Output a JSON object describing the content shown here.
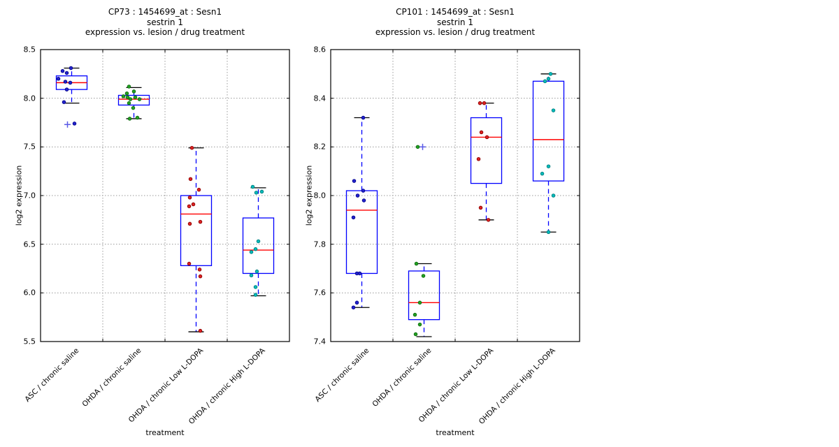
{
  "style": {
    "box_color": "#0000ff",
    "median_color": "#ff0000",
    "whisker_color": "#0000ff",
    "cap_color": "#000000",
    "frame_color": "#000000",
    "grid_color": "#999999",
    "flier_color": "#5959e6"
  },
  "chart_data": [
    {
      "type": "boxplot",
      "title_lines": [
        "CP73 : 1454699_at : Sesn1",
        "sestrin 1",
        "expression vs. lesion / drug treatment"
      ],
      "ylabel": "log2 expression",
      "xlabel": "treatment",
      "ylim": [
        5.5,
        8.5
      ],
      "yticks": [
        5.5,
        6.0,
        6.5,
        7.0,
        7.5,
        8.0,
        8.5
      ],
      "ytick_labels": [
        "5.5",
        "6.0",
        "6.5",
        "7.0",
        "7.5",
        "8.0",
        "8.5"
      ],
      "grid": true,
      "categories": [
        "ASC / chronic saline",
        "OHDA / chronic saline",
        "OHDA / chronic Low L-DOPA",
        "OHDA / chronic High L-DOPA"
      ],
      "groups": [
        {
          "category": "ASC / chronic saline",
          "color": "#2323cc",
          "edge": "#00008b",
          "box": {
            "lo": 7.95,
            "q1": 8.09,
            "med": 8.16,
            "q3": 8.23,
            "hi": 8.31
          },
          "points": [
            [
              -1,
              8.31
            ],
            [
              -13,
              8.28
            ],
            [
              -7,
              8.26
            ],
            [
              -19,
              8.2
            ],
            [
              -9,
              8.17
            ],
            [
              -2,
              8.16
            ],
            [
              -7,
              8.09
            ],
            [
              -11,
              7.96
            ],
            [
              4,
              7.74
            ]
          ],
          "fliers": [
            [
              -6,
              7.73
            ]
          ]
        },
        {
          "category": "OHDA / chronic saline",
          "color": "#22a022",
          "edge": "#0f6b0f",
          "box": {
            "lo": 7.79,
            "q1": 7.93,
            "med": 7.99,
            "q3": 8.03,
            "hi": 8.11
          },
          "points": [
            [
              -7,
              8.12
            ],
            [
              0,
              8.07
            ],
            [
              -10,
              8.05
            ],
            [
              -15,
              8.02
            ],
            [
              -9,
              8.01
            ],
            [
              2,
              8.01
            ],
            [
              -5,
              7.99
            ],
            [
              8,
              7.99
            ],
            [
              -7,
              7.95
            ],
            [
              -1,
              7.9
            ],
            [
              5,
              7.8
            ],
            [
              -6,
              7.79
            ]
          ],
          "fliers": []
        },
        {
          "category": "OHDA / chronic Low L-DOPA",
          "color": "#dd2222",
          "edge": "#8b0000",
          "box": {
            "lo": 5.6,
            "q1": 6.28,
            "med": 6.81,
            "q3": 7.0,
            "hi": 7.49
          },
          "points": [
            [
              -6,
              7.49
            ],
            [
              -8,
              7.17
            ],
            [
              4,
              7.06
            ],
            [
              -9,
              6.98
            ],
            [
              -4,
              6.91
            ],
            [
              -10,
              6.89
            ],
            [
              6,
              6.73
            ],
            [
              -9,
              6.71
            ],
            [
              -10,
              6.3
            ],
            [
              5,
              6.24
            ],
            [
              6,
              6.17
            ],
            [
              6,
              5.61
            ]
          ],
          "fliers": []
        },
        {
          "category": "OHDA / chronic High L-DOPA",
          "color": "#00bbbb",
          "edge": "#007d7d",
          "box": {
            "lo": 5.97,
            "q1": 6.2,
            "med": 6.44,
            "q3": 6.77,
            "hi": 7.08
          },
          "points": [
            [
              -8,
              7.09
            ],
            [
              5,
              7.04
            ],
            [
              -3,
              7.03
            ],
            [
              0,
              6.53
            ],
            [
              -4,
              6.45
            ],
            [
              -10,
              6.42
            ],
            [
              -2,
              6.22
            ],
            [
              -10,
              6.18
            ],
            [
              -4,
              6.06
            ],
            [
              -4,
              5.98
            ]
          ],
          "fliers": []
        }
      ]
    },
    {
      "type": "boxplot",
      "title_lines": [
        "CP101 : 1454699_at : Sesn1",
        "sestrin 1",
        "expression vs. lesion / drug treatment"
      ],
      "ylabel": "log2 expression",
      "xlabel": "treatment",
      "ylim": [
        7.4,
        8.6
      ],
      "yticks": [
        7.4,
        7.6,
        7.8,
        8.0,
        8.2,
        8.4,
        8.6
      ],
      "ytick_labels": [
        "7.4",
        "7.6",
        "7.8",
        "8.0",
        "8.2",
        "8.4",
        "8.6"
      ],
      "grid": true,
      "categories": [
        "ASC / chronic saline",
        "OHDA / chronic saline",
        "OHDA / chronic Low L-DOPA",
        "OHDA / chronic High L-DOPA"
      ],
      "groups": [
        {
          "category": "ASC / chronic saline",
          "color": "#2323cc",
          "edge": "#00008b",
          "box": {
            "lo": 7.54,
            "q1": 7.68,
            "med": 7.94,
            "q3": 8.02,
            "hi": 8.32
          },
          "points": [
            [
              2,
              8.32
            ],
            [
              -11,
              8.06
            ],
            [
              2,
              8.02
            ],
            [
              -6,
              8.0
            ],
            [
              3,
              7.98
            ],
            [
              -12,
              7.91
            ],
            [
              -7,
              7.68
            ],
            [
              -3,
              7.68
            ],
            [
              -7,
              7.56
            ],
            [
              -12,
              7.54
            ]
          ],
          "fliers": []
        },
        {
          "category": "OHDA / chronic saline",
          "color": "#22a022",
          "edge": "#0f6b0f",
          "box": {
            "lo": 7.42,
            "q1": 7.49,
            "med": 7.56,
            "q3": 7.69,
            "hi": 7.72
          },
          "points": [
            [
              -9,
              8.2
            ],
            [
              -11,
              7.72
            ],
            [
              -1,
              7.67
            ],
            [
              -6,
              7.56
            ],
            [
              -13,
              7.51
            ],
            [
              -6,
              7.47
            ],
            [
              -12,
              7.43
            ]
          ],
          "fliers": [
            [
              -2,
              8.2
            ]
          ]
        },
        {
          "category": "OHDA / chronic Low L-DOPA",
          "color": "#dd2222",
          "edge": "#8b0000",
          "box": {
            "lo": 7.9,
            "q1": 8.05,
            "med": 8.24,
            "q3": 8.32,
            "hi": 8.38
          },
          "points": [
            [
              -9,
              8.38
            ],
            [
              -3,
              8.38
            ],
            [
              -7,
              8.26
            ],
            [
              1,
              8.24
            ],
            [
              -11,
              8.15
            ],
            [
              -8,
              7.95
            ],
            [
              3,
              7.9
            ]
          ],
          "fliers": []
        },
        {
          "category": "OHDA / chronic High L-DOPA",
          "color": "#00bbbb",
          "edge": "#007d7d",
          "box": {
            "lo": 7.85,
            "q1": 8.06,
            "med": 8.23,
            "q3": 8.47,
            "hi": 8.5
          },
          "points": [
            [
              3,
              8.5
            ],
            [
              0,
              8.48
            ],
            [
              -5,
              8.47
            ],
            [
              7,
              8.35
            ],
            [
              0,
              8.12
            ],
            [
              -9,
              8.09
            ],
            [
              7,
              8.0
            ],
            [
              0,
              7.85
            ]
          ],
          "fliers": []
        }
      ]
    }
  ]
}
